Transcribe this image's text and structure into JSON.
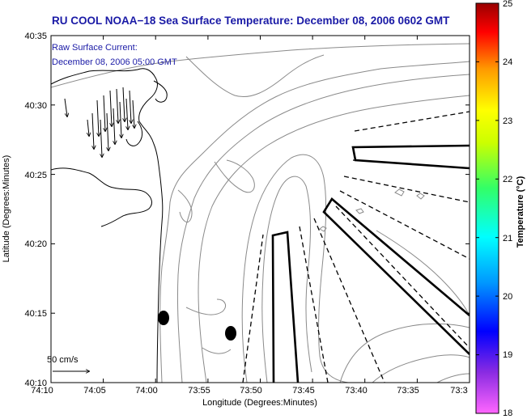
{
  "title": "RU COOL  NOAA−18  Sea Surface Temperature:  December 08, 2006 0602 GMT",
  "current_label": [
    "Raw Surface Current:",
    "December 08, 2006 05:00 GMT"
  ],
  "scale_label": "50 cm/s",
  "axes": {
    "xlabel": "Longitude (Degrees:Minutes)",
    "ylabel": "Latitude (Degrees:Minutes)",
    "xticks": [
      "74:10",
      "74:05",
      "74:00",
      "73:55",
      "73:50",
      "73:45",
      "73:40",
      "73:35",
      "73:3"
    ],
    "yticks": [
      "40:35",
      "40:30",
      "40:25",
      "40:20",
      "40:15",
      "40:10"
    ]
  },
  "colorbar": {
    "label": "Temperature (°C)",
    "ticks": [
      "25",
      "24",
      "23",
      "22",
      "21",
      "20",
      "19",
      "18"
    ],
    "range": [
      18,
      25
    ]
  }
}
